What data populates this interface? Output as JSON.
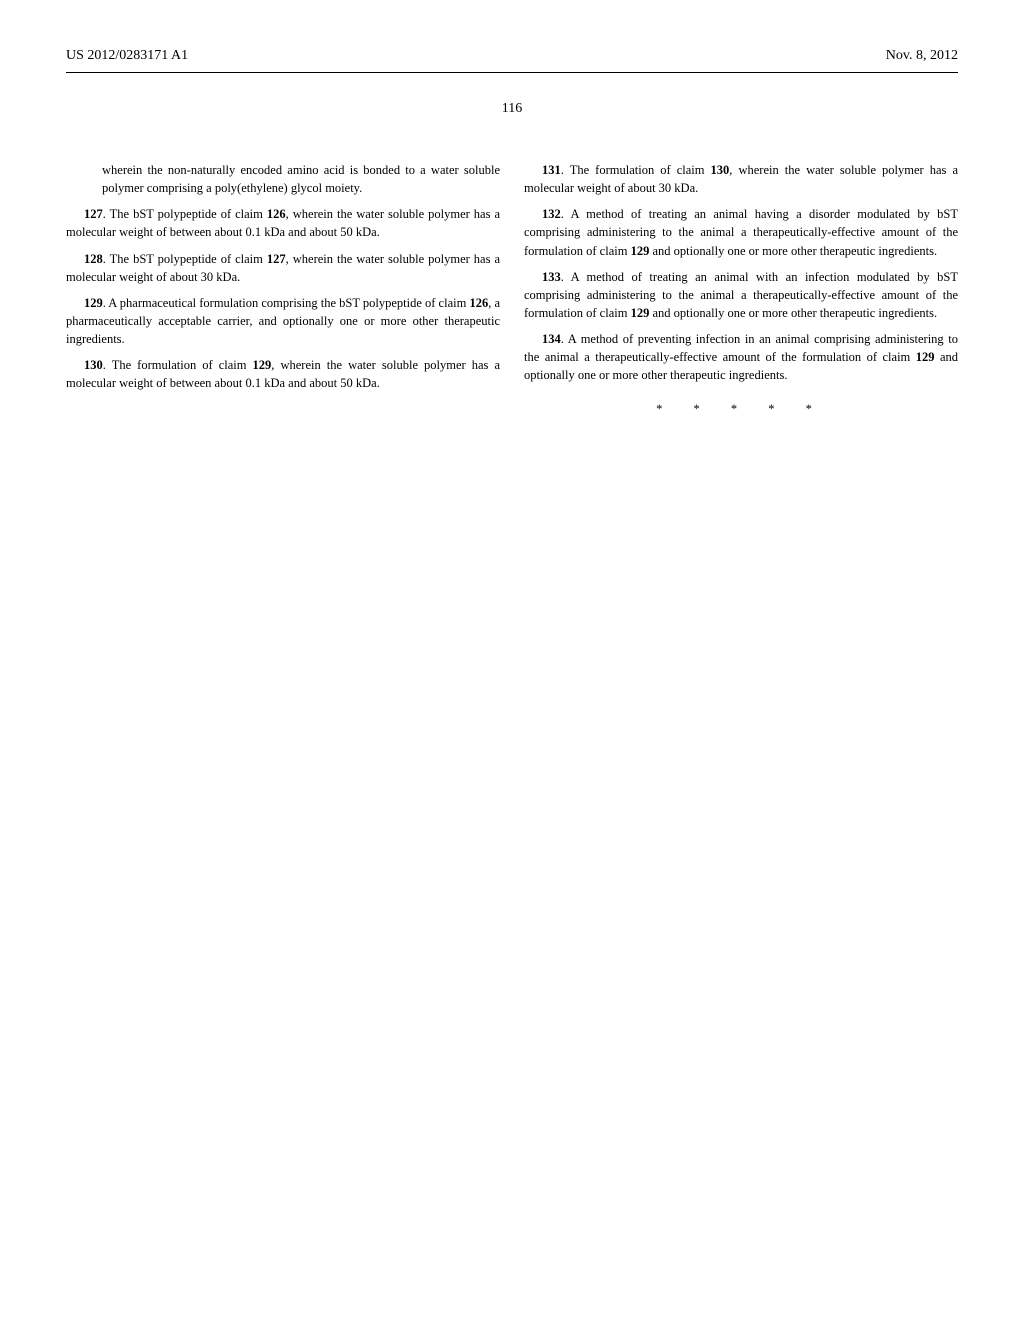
{
  "header": {
    "pub_number": "US 2012/0283171 A1",
    "pub_date": "Nov. 8, 2012"
  },
  "page_number": "116",
  "left_column": {
    "p0": "wherein the non-naturally encoded amino acid is bonded to a water soluble polymer comprising a poly(ethylene) glycol moiety.",
    "p1_num": "127",
    "p1_ref": "126",
    "p1_a": ". The bST polypeptide of claim ",
    "p1_b": ", wherein the water soluble polymer has a molecular weight of between about 0.1 kDa and about 50 kDa.",
    "p2_num": "128",
    "p2_ref": "127",
    "p2_a": ". The bST polypeptide of claim ",
    "p2_b": ", wherein the water soluble polymer has a molecular weight of about 30 kDa.",
    "p3_num": "129",
    "p3_ref": "126",
    "p3_a": ". A pharmaceutical formulation comprising the bST polypeptide of claim ",
    "p3_b": ", a pharmaceutically acceptable carrier, and optionally one or more other therapeutic ingredients.",
    "p4_num": "130",
    "p4_ref": "129",
    "p4_a": ". The formulation of claim ",
    "p4_b": ", wherein the water soluble polymer has a molecular weight of between about 0.1 kDa and about 50 kDa."
  },
  "right_column": {
    "p1_num": "131",
    "p1_ref": "130",
    "p1_a": ". The formulation of claim ",
    "p1_b": ", wherein the water soluble polymer has a molecular weight of about 30 kDa.",
    "p2_num": "132",
    "p2_ref": "129",
    "p2_a": ". A method of treating an animal having a disorder modulated by bST comprising administering to the animal a therapeutically-effective amount of the formulation of claim ",
    "p2_b": " and optionally one or more other therapeutic ingredients.",
    "p3_num": "133",
    "p3_ref": "129",
    "p3_a": ". A method of treating an animal with an infection modulated by bST comprising administering to the animal a therapeutically-effective amount of the formulation of claim ",
    "p3_b": " and optionally one or more other therapeutic ingredients.",
    "p4_num": "134",
    "p4_ref": "129",
    "p4_a": ". A method of preventing infection in an animal comprising administering to the animal a therapeutically-effective amount of the formulation of claim ",
    "p4_b": " and optionally one or more other therapeutic ingredients."
  },
  "asterisks": "* * * * *"
}
